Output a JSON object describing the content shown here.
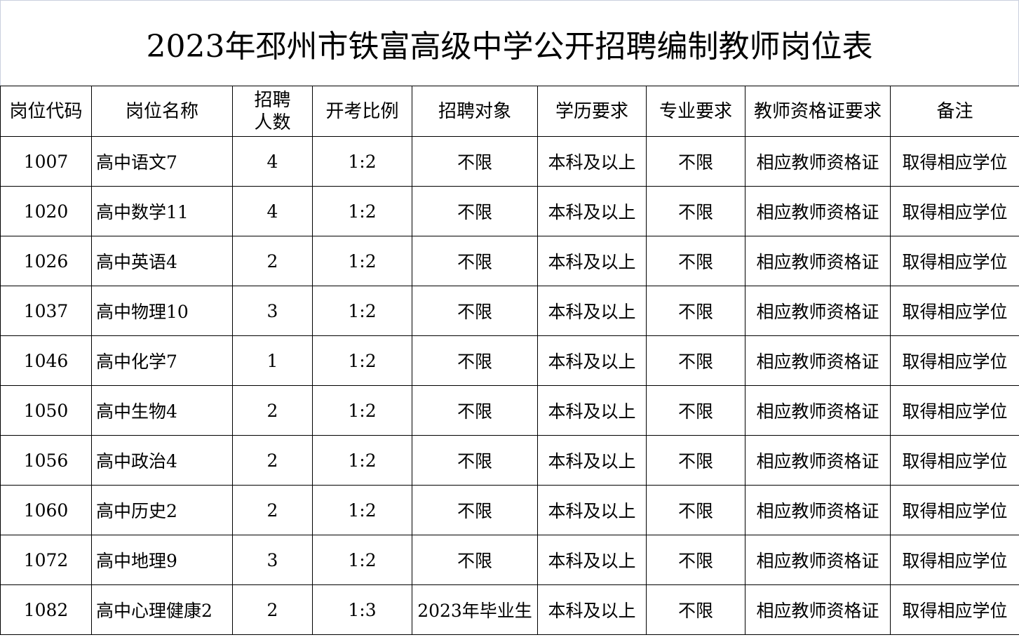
{
  "title": "2023年邳州市铁富高级中学公开招聘编制教师岗位表",
  "columns": [
    "岗位代码",
    "岗位名称",
    "招聘人数",
    "开考比例",
    "招聘对象",
    "学历要求",
    "专业要求",
    "教师资格证要求",
    "备注"
  ],
  "rows": [
    [
      "1007",
      "高中语文7",
      "4",
      "1:2",
      "不限",
      "本科及以上",
      "不限",
      "相应教师资格证",
      "取得相应学位"
    ],
    [
      "1020",
      "高中数学11",
      "4",
      "1:2",
      "不限",
      "本科及以上",
      "不限",
      "相应教师资格证",
      "取得相应学位"
    ],
    [
      "1026",
      "高中英语4",
      "2",
      "1:2",
      "不限",
      "本科及以上",
      "不限",
      "相应教师资格证",
      "取得相应学位"
    ],
    [
      "1037",
      "高中物理10",
      "3",
      "1:2",
      "不限",
      "本科及以上",
      "不限",
      "相应教师资格证",
      "取得相应学位"
    ],
    [
      "1046",
      "高中化学7",
      "1",
      "1:2",
      "不限",
      "本科及以上",
      "不限",
      "相应教师资格证",
      "取得相应学位"
    ],
    [
      "1050",
      "高中生物4",
      "2",
      "1:2",
      "不限",
      "本科及以上",
      "不限",
      "相应教师资格证",
      "取得相应学位"
    ],
    [
      "1056",
      "高中政治4",
      "2",
      "1:2",
      "不限",
      "本科及以上",
      "不限",
      "相应教师资格证",
      "取得相应学位"
    ],
    [
      "1060",
      "高中历史2",
      "2",
      "1:2",
      "不限",
      "本科及以上",
      "不限",
      "相应教师资格证",
      "取得相应学位"
    ],
    [
      "1072",
      "高中地理9",
      "3",
      "1:2",
      "不限",
      "本科及以上",
      "不限",
      "相应教师资格证",
      "取得相应学位"
    ],
    [
      "1082",
      "高中心理健康2",
      "2",
      "1:3",
      "2023年毕业生",
      "本科及以上",
      "不限",
      "相应教师资格证",
      "取得相应学位"
    ]
  ]
}
